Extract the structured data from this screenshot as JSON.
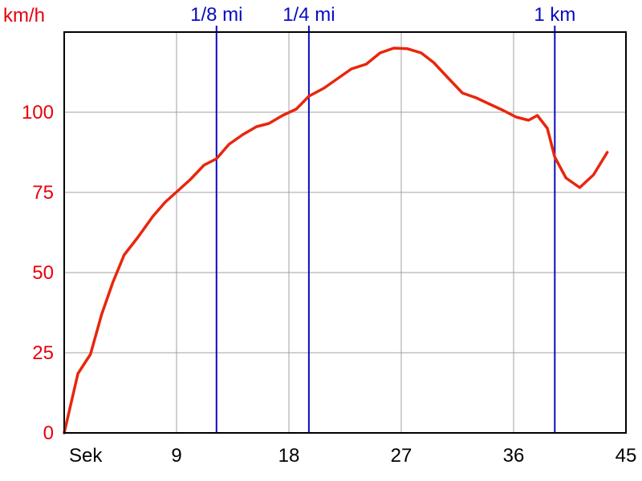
{
  "chart_data": {
    "type": "line",
    "ylabel": "km/h",
    "xlabel": "Sek",
    "xlim": [
      0,
      45
    ],
    "ylim": [
      0,
      125
    ],
    "grid": true,
    "x_ticks": [
      9,
      18,
      27,
      36,
      45
    ],
    "y_ticks": [
      0,
      25,
      50,
      75,
      100
    ],
    "markers": [
      {
        "label": "1/8 mi",
        "x": 12.2
      },
      {
        "label": "1/4 mi",
        "x": 19.6
      },
      {
        "label": "1 km",
        "x": 39.3
      }
    ],
    "series": [
      {
        "x": [
          0,
          1.1,
          2.1,
          3.0,
          3.9,
          4.8,
          5.9,
          7.1,
          8.1,
          9.1,
          10.1,
          11.2,
          12.2,
          13.2,
          14.3,
          15.4,
          16.4,
          17.5,
          18.6,
          19.6,
          20.8,
          21.9,
          23.0,
          24.2,
          25.3,
          26.4,
          27.5,
          28.6,
          29.6,
          30.8,
          31.9,
          33.0,
          34.1,
          35.2,
          36.2,
          37.2,
          37.9,
          38.7,
          39.3,
          40.2,
          41.3,
          42.4,
          43.5
        ],
        "y": [
          0,
          18.5,
          24.5,
          37,
          47,
          55.5,
          61,
          67.5,
          72,
          75.5,
          79,
          83.5,
          85.5,
          90,
          93,
          95.5,
          96.5,
          99,
          101,
          105,
          107.5,
          110.5,
          113.5,
          115,
          118.5,
          120,
          119.8,
          118.5,
          115.5,
          110.5,
          106,
          104.5,
          102.5,
          100.5,
          98.5,
          97.5,
          99,
          95,
          86,
          79.5,
          76.5,
          80.5,
          87.5
        ]
      }
    ],
    "colors": {
      "series": "#e8260c",
      "marker": "#0a0ac0",
      "axis_labels": "#e8000c",
      "grid": "#a0a0a0",
      "frame": "#000000"
    }
  }
}
